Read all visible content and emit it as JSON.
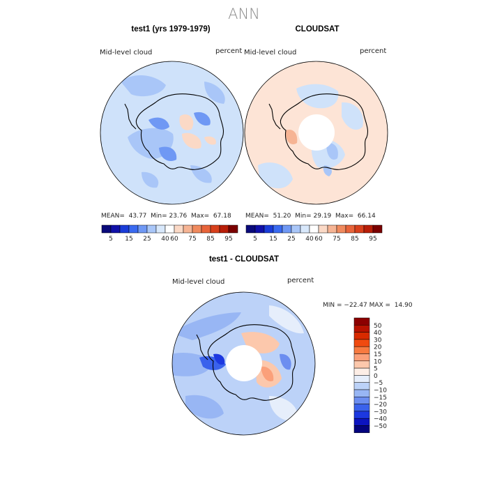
{
  "figure": {
    "title": "ANN"
  },
  "panels": [
    {
      "title": "test1 (yrs 1979-1979)",
      "variable": "Mid-level cloud",
      "units": "percent",
      "stats": {
        "mean_label": "MEAN=",
        "mean": "43.77",
        "min_label": "Min=",
        "min": "23.76",
        "max_label": "Max=",
        "max": "67.18"
      }
    },
    {
      "title": "CLOUDSAT",
      "variable": "Mid-level cloud",
      "units": "percent",
      "stats": {
        "mean_label": "MEAN=",
        "mean": "51.20",
        "min_label": "Min=",
        "min": "29.19",
        "max_label": "Max=",
        "max": "66.14"
      }
    },
    {
      "title": "test1 - CLOUDSAT",
      "variable": "Mid-level cloud",
      "units": "percent",
      "stats_text": "MIN = −22.47 MAX =  14.90"
    }
  ],
  "colorbars": {
    "field": {
      "colors": [
        "#0a0a7a",
        "#1010a8",
        "#1a3cd8",
        "#3a6af0",
        "#6f98f4",
        "#a9c6f8",
        "#d8e8fb",
        "#ffffff",
        "#fbd9c6",
        "#f6b494",
        "#f08a5e",
        "#e8643a",
        "#d8401c",
        "#b81e08",
        "#7a0000"
      ],
      "tick_labels": [
        "5",
        "15",
        "25",
        "40",
        "60",
        "75",
        "85",
        "95"
      ]
    },
    "difference": {
      "colors_top_to_bottom": [
        "#8c0000",
        "#b81200",
        "#d82a00",
        "#f04a10",
        "#f87a40",
        "#fba07a",
        "#fcc8ac",
        "#fdeee6",
        "#e6eefb",
        "#bcd2f8",
        "#98b6f4",
        "#6c8ef0",
        "#3a62ec",
        "#1c38e0",
        "#0c14c0",
        "#04047e"
      ],
      "tick_labels": [
        "50",
        "40",
        "30",
        "20",
        "15",
        "10",
        "5",
        "0",
        "−5",
        "−10",
        "−15",
        "−20",
        "−30",
        "−40",
        "−50"
      ]
    }
  }
}
